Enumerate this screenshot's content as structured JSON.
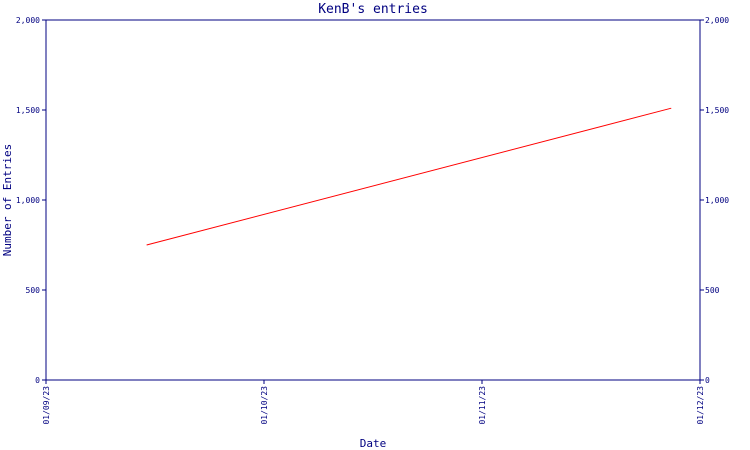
{
  "chart_data": {
    "type": "line",
    "title": "KenB's entries",
    "xlabel": "Date",
    "ylabel": "Number of Entries",
    "x_ticks": [
      "01/09/23",
      "01/10/23",
      "01/11/23",
      "01/12/23"
    ],
    "y_ticks": [
      "0",
      "500",
      "1,000",
      "1,500",
      "2,000"
    ],
    "ylim": [
      0,
      2000
    ],
    "xlim": [
      "2023-09-01",
      "2023-12-01"
    ],
    "grid": false,
    "series": [
      {
        "color": "#ff0000",
        "points": [
          {
            "x": "2023-09-15",
            "y": 750
          },
          {
            "x": "2023-11-27",
            "y": 1510
          }
        ]
      }
    ]
  },
  "colors": {
    "axis": "#000080",
    "line": "#ff0000",
    "background": "#ffffff"
  }
}
